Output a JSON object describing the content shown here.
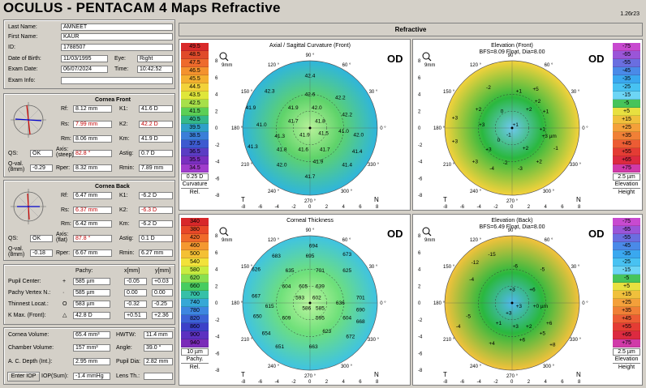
{
  "app_title": "OCULUS  -  PENTACAM   4 Maps Refractive",
  "version": "1.26r23",
  "patient": {
    "last_name_label": "Last Name:",
    "last_name": "AMNEET",
    "first_name_label": "First Name:",
    "first_name": "KAUR",
    "id_label": "ID:",
    "id": "1788507",
    "dob_label": "Date of Birth:",
    "dob": "11/03/1995",
    "eye_label": "Eye:",
    "eye": "Right",
    "exam_date_label": "Exam Date:",
    "exam_date": "06/07/2024",
    "time_label": "Time:",
    "time": "10:42:52",
    "exam_info_label": "Exam Info:",
    "exam_info": ""
  },
  "cornea_front": {
    "title": "Cornea Front",
    "rf_label": "Rf:",
    "rf": "8.12 mm",
    "k1_label": "K1:",
    "k1": "41.6 D",
    "rs_label": "Rs:",
    "rs": "7.99 mm",
    "k2_label": "K2:",
    "k2": "42.2 D",
    "rm_label": "Rm:",
    "rm": "8.06 mm",
    "km_label": "Km:",
    "km": "41.9 D",
    "qs_label": "QS:",
    "qs": "OK",
    "axis_label": "Axis:\n(steep)",
    "axis": "82.8 °",
    "astig_label": "Astig:",
    "astig": "0.7 D",
    "qval_label": "Q-val.\n(8mm)",
    "qval": "-0.29",
    "rper_label": "Rper:",
    "rper": "8.32 mm",
    "rmin_label": "Rmin:",
    "rmin": "7.89 mm"
  },
  "cornea_back": {
    "title": "Cornea Back",
    "rf_label": "Rf:",
    "rf": "6.47 mm",
    "k1_label": "K1:",
    "k1": "-6.2 D",
    "rs_label": "Rs:",
    "rs": "6.37 mm",
    "k2_label": "K2:",
    "k2": "-6.3 D",
    "rm_label": "Rm:",
    "rm": "6.42 mm",
    "km_label": "Km:",
    "km": "-6.2 D",
    "qs_label": "QS:",
    "qs": "OK",
    "axis_label": "Axis:\n(flat)",
    "axis": "87.8 °",
    "astig_label": "Astig:",
    "astig": "0.1 D",
    "qval_label": "Q-val.\n(8mm)",
    "qval": "-0.18",
    "rper_label": "Rper:",
    "rper": "6.67 mm",
    "rmin_label": "Rmin:",
    "rmin": "6.27 mm"
  },
  "pachy": {
    "col_pachy": "Pachy:",
    "col_x": "x[mm]",
    "col_y": "y[mm]",
    "rows": [
      {
        "label": "Pupil Center:",
        "sym": "+",
        "pachy": "585 µm",
        "x": "-0.05",
        "y": "+0.03"
      },
      {
        "label": "Pachy Vertex N.:",
        "sym": "·",
        "pachy": "585 µm",
        "x": "0.00",
        "y": "0.00"
      },
      {
        "label": "Thinnest Locat.:",
        "sym": "O",
        "pachy": "583 µm",
        "x": "-0.32",
        "y": "-0.25"
      },
      {
        "label": "K Max. (Front):",
        "sym": "△",
        "pachy": "42.8 D",
        "x": "+0.51",
        "y": "+2.36"
      }
    ]
  },
  "chamber": {
    "cornea_vol_label": "Cornea Volume:",
    "cornea_vol": "65.4 mm³",
    "hwtw_label": "HWTW:",
    "hwtw": "11.4 mm",
    "chamber_vol_label": "Chamber Volume:",
    "chamber_vol": "157 mm³",
    "angle_label": "Angle:",
    "angle": "39.0 °",
    "acd_label": "A. C. Depth (Int.):",
    "acd": "2.95 mm",
    "pupil_label": "Pupil Dia:",
    "pupil": "2.82 mm",
    "enter_iop": "Enter IOP",
    "iop_label": "IOP(Sum):",
    "iop": "-1.4 mmHg",
    "lens_label": "Lens Th.:",
    "lens": ""
  },
  "maps_header": "Refractive",
  "maps": [
    {
      "title": "Axial / Sagittal Curvature (Front)",
      "subtitle": "",
      "eye": "OD",
      "zoom": "9mm",
      "bg": "#34c7e6",
      "grad": [
        "#b9f29a",
        "#5fd36a",
        "#2fb5dc"
      ],
      "values": [
        "42.4",
        "42.3",
        "42.6",
        "42.2",
        "41.9",
        "41.9",
        "42.0",
        "42.2",
        "41.0",
        "41.7",
        "41.8",
        "41.0",
        "41.3",
        "41.9",
        "41.5",
        "42.0",
        "41.8",
        "41.6",
        "41.7",
        "41.3",
        "41.4",
        "42.0",
        "41.9",
        "41.4",
        "41.7"
      ],
      "scale_unit": "0.25 D",
      "scale_name": "Curvature",
      "scale_rel": "Rel."
    },
    {
      "title": "Elevation (Front)",
      "subtitle": "BFS=8.09 Float, Dia=8.00",
      "eye": "OD",
      "zoom": "9mm",
      "bg": "#f5d23c",
      "grad": [
        "#6ec8f0",
        "#2ab83f",
        "#f5d23c"
      ],
      "values": [
        "-2",
        "+1",
        "+5",
        "+2",
        "+3",
        "+2",
        "0",
        "+2",
        "+1",
        "+3",
        "+1",
        "-1",
        "+3 µm",
        "+3",
        "0",
        "+1",
        "+3",
        "+2",
        "-1",
        "-2",
        "+2",
        "+3",
        "-4",
        "-3"
      ],
      "scale_unit": "2.5 µm",
      "scale_name": "Elevation",
      "scale_rel": "Height"
    },
    {
      "title": "Corneal Thickness",
      "subtitle": "",
      "eye": "OD",
      "zoom": "9mm",
      "bg": "#2fbde0",
      "grad": [
        "#bdf5a0",
        "#6fe07a",
        "#3fc3e2"
      ],
      "values": [
        "694",
        "683",
        "695",
        "673",
        "626",
        "635",
        "701",
        "625",
        "604",
        "605",
        "639",
        "667",
        "593",
        "602",
        "701",
        "615",
        "586",
        "585",
        "636",
        "690",
        "650",
        "609",
        "595",
        "668",
        "604",
        "623",
        "654",
        "651",
        "663",
        "672"
      ],
      "scale_unit": "10 µm",
      "scale_name": "Pachy.",
      "scale_rel": "Rel."
    },
    {
      "title": "Elevation (Back)",
      "subtitle": "BFS=6.49 Float, Dia=8.00",
      "eye": "OD",
      "zoom": "9mm",
      "bg": "#f5c23c",
      "grad": [
        "#50b8ee",
        "#2ab83f",
        "#f5c23c"
      ],
      "values": [
        "-15",
        "-12",
        "-6",
        "-5",
        "-4",
        "+4",
        "+3",
        "+6",
        "+3",
        "+0 µm",
        "+3",
        "+1",
        "+3",
        "+2",
        "+6",
        "-5",
        "+6",
        "+5",
        "+8",
        "-4"
      ],
      "scale_unit": "2.5 µm",
      "scale_name": "Elevation",
      "scale_rel": "Height"
    }
  ],
  "curv_scale": [
    "49.5",
    "48.5",
    "47.5",
    "46.5",
    "45.5",
    "44.5",
    "43.5",
    "42.5",
    "41.5",
    "40.5",
    "39.5",
    "38.5",
    "37.5",
    "36.5",
    "35.5",
    "34.5"
  ],
  "curv_colors": [
    "#d92a2a",
    "#e04a2a",
    "#ee6a2c",
    "#f4922e",
    "#f4b030",
    "#f2d23a",
    "#dfe63a",
    "#a7e04a",
    "#5ccf56",
    "#34b88a",
    "#2fa0c8",
    "#3a7ed8",
    "#3d5ad0",
    "#5b3cc4",
    "#7a2fc0",
    "#a03dcd"
  ],
  "elev_scale": [
    "-75",
    "-65",
    "-55",
    "-45",
    "-35",
    "-25",
    "-15",
    "-5",
    "+5",
    "+15",
    "+25",
    "+35",
    "+45",
    "+55",
    "+65",
    "+75"
  ],
  "elev_colors": [
    "#c84ad0",
    "#9a55d8",
    "#6a6ee0",
    "#4a8ae8",
    "#3aa8ef",
    "#48c2f2",
    "#6dd5f5",
    "#46c45a",
    "#e8e040",
    "#f0c03c",
    "#f4a03a",
    "#f08036",
    "#ec5c34",
    "#e43c34",
    "#dc2a40",
    "#d03aa8"
  ],
  "pachy_scale": [
    "340",
    "380",
    "420",
    "460",
    "500",
    "540",
    "580",
    "620",
    "660",
    "700",
    "740",
    "780",
    "820",
    "860",
    "900",
    "940"
  ],
  "pachy_colors": [
    "#d8272a",
    "#e84828",
    "#f06a2a",
    "#f49830",
    "#f4c034",
    "#f2e23a",
    "#c8ec40",
    "#88e050",
    "#46cc60",
    "#36c0a8",
    "#36a8d6",
    "#3d86e0",
    "#3c62d6",
    "#3c40c8",
    "#5c30c0",
    "#7a2ab8"
  ],
  "axis_labels": {
    "t": "T",
    "n": "N",
    "deg90": "90 °",
    "deg270": "270 °",
    "deg60": "60 °",
    "deg120": "120 °",
    "deg30": "30 °",
    "deg150": "150 °",
    "deg0": "0 °",
    "deg180": "180 °",
    "deg210": "210 °",
    "deg240": "240 °",
    "deg300": "300 °",
    "deg330": "330 °"
  }
}
